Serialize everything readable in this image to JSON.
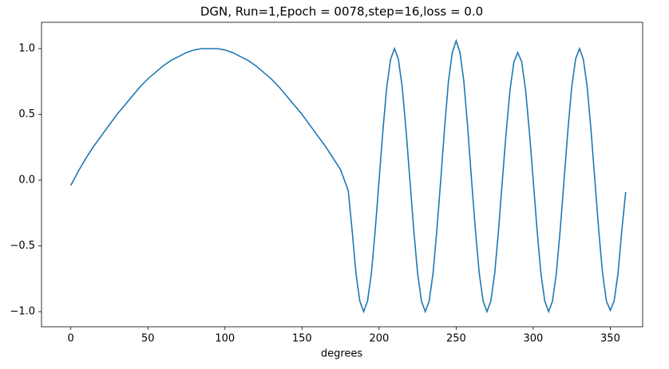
{
  "chart_data": {
    "type": "line",
    "title": "DGN, Run=1,Epoch = 0078,step=16,loss = 0.0",
    "x_label": "degrees",
    "x": [
      0,
      5,
      10,
      15,
      20,
      25,
      30,
      35,
      40,
      45,
      50,
      55,
      60,
      65,
      70,
      75,
      80,
      85,
      90,
      95,
      100,
      105,
      110,
      115,
      120,
      125,
      130,
      135,
      140,
      145,
      150,
      155,
      160,
      165,
      170,
      175,
      180,
      182.5,
      185,
      187.5,
      190,
      192.5,
      195,
      197.5,
      200,
      202.5,
      205,
      207.5,
      210,
      212.5,
      215,
      217.5,
      220,
      222.5,
      225,
      227.5,
      230,
      232.5,
      235,
      237.5,
      240,
      242.5,
      245,
      247.5,
      250,
      252.5,
      255,
      257.5,
      260,
      262.5,
      265,
      267.5,
      270,
      272.5,
      275,
      277.5,
      280,
      282.5,
      285,
      287.5,
      290,
      292.5,
      295,
      297.5,
      300,
      302.5,
      305,
      307.5,
      310,
      312.5,
      315,
      317.5,
      320,
      322.5,
      325,
      327.5,
      330,
      332.5,
      335,
      337.5,
      340,
      342.5,
      345,
      347.5,
      350,
      352.5,
      355,
      357.5,
      360
    ],
    "series": [
      {
        "color": "#1f77b4",
        "values": [
          -0.04,
          0.07,
          0.17,
          0.26,
          0.34,
          0.42,
          0.5,
          0.57,
          0.64,
          0.71,
          0.77,
          0.82,
          0.87,
          0.91,
          0.94,
          0.97,
          0.99,
          1,
          1,
          1,
          0.99,
          0.97,
          0.94,
          0.91,
          0.87,
          0.82,
          0.77,
          0.71,
          0.64,
          0.57,
          0.5,
          0.42,
          0.34,
          0.26,
          0.17,
          0.08,
          -0.08,
          -0.38,
          -0.71,
          -0.92,
          -1,
          -0.92,
          -0.71,
          -0.38,
          0,
          0.38,
          0.71,
          0.92,
          1,
          0.92,
          0.71,
          0.38,
          0,
          -0.38,
          -0.71,
          -0.92,
          -1,
          -0.92,
          -0.71,
          -0.38,
          0,
          0.4,
          0.75,
          0.97,
          1.06,
          0.97,
          0.75,
          0.4,
          0,
          -0.38,
          -0.71,
          -0.92,
          -1,
          -0.92,
          -0.71,
          -0.38,
          0,
          0.37,
          0.69,
          0.9,
          0.97,
          0.9,
          0.69,
          0.37,
          0,
          -0.38,
          -0.71,
          -0.92,
          -1,
          -0.92,
          -0.71,
          -0.38,
          0,
          0.38,
          0.71,
          0.92,
          1,
          0.92,
          0.71,
          0.38,
          0,
          -0.38,
          -0.71,
          -0.92,
          -0.99,
          -0.92,
          -0.71,
          -0.38,
          -0.09
        ]
      }
    ],
    "xlim": [
      -19,
      371
    ],
    "ylim": [
      -1.115,
      1.2
    ],
    "xticks": [
      0,
      50,
      100,
      150,
      200,
      250,
      300,
      350
    ],
    "yticks": [
      {
        "value": -1.0,
        "label": "−1.0"
      },
      {
        "value": -0.5,
        "label": "−0.5"
      },
      {
        "value": 0.0,
        "label": "0.0"
      },
      {
        "value": 0.5,
        "label": "0.5"
      },
      {
        "value": 1.0,
        "label": "1.0"
      }
    ],
    "grid": false
  }
}
